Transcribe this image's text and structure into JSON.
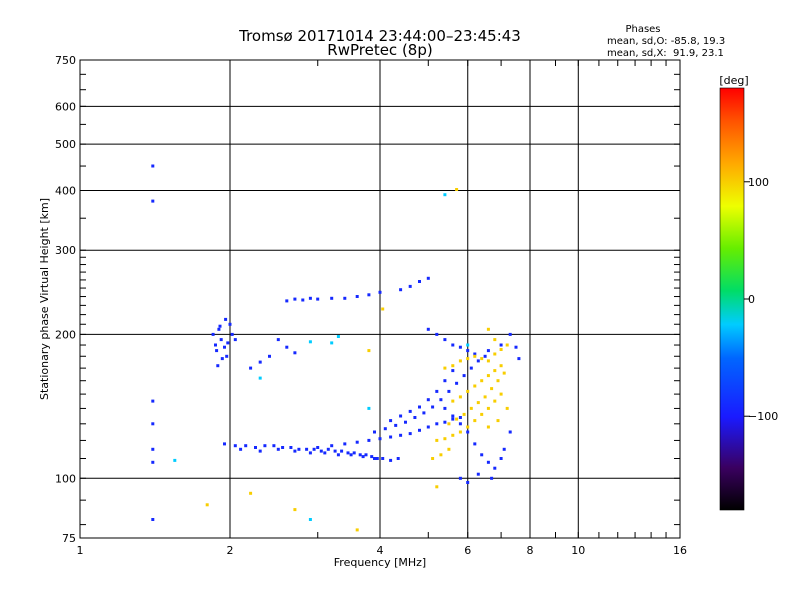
{
  "chart_data": {
    "type": "scatter",
    "title": "Tromsø 20171014 23:44:00–23:45:43",
    "subtitle": "RwPretec (8p)",
    "xlabel": "Frequency [MHz]",
    "ylabel": "Stationary phase Virtual Height [km]",
    "x_scale": "log",
    "y_scale": "log",
    "xlim": [
      1,
      16
    ],
    "ylim": [
      75,
      750
    ],
    "x_ticks": [
      1,
      2,
      4,
      6,
      8,
      10,
      16
    ],
    "x_tick_labels": [
      "1",
      "2",
      "4",
      "6",
      "8",
      "10",
      "16"
    ],
    "y_ticks": [
      75,
      100,
      200,
      300,
      400,
      500,
      600,
      750
    ],
    "y_tick_labels": [
      "75",
      "100",
      "200",
      "300",
      "400",
      "500",
      "600",
      "750"
    ],
    "grid": true,
    "stats_box": {
      "heading": "Phases",
      "line_o": "mean, sd,O: -85.8, 19.3",
      "line_x": "mean, sd,X:  91.9, 23.1"
    },
    "colorbar": {
      "label": "[deg]",
      "range": [
        -180,
        180
      ],
      "ticks": [
        100,
        0,
        -100
      ],
      "tick_labels": [
        "100",
        "0",
        "−100"
      ]
    },
    "series": [
      {
        "mode": "O",
        "phase": -100,
        "points": [
          [
            1.4,
            450
          ],
          [
            1.4,
            380
          ],
          [
            1.4,
            145
          ],
          [
            1.4,
            130
          ],
          [
            1.4,
            115
          ],
          [
            1.4,
            108
          ],
          [
            1.4,
            82
          ],
          [
            1.85,
            200
          ],
          [
            1.87,
            190
          ],
          [
            1.88,
            185
          ],
          [
            1.9,
            205
          ],
          [
            1.92,
            195
          ],
          [
            1.95,
            188
          ],
          [
            1.97,
            180
          ],
          [
            1.98,
            192
          ],
          [
            2.0,
            210
          ],
          [
            2.02,
            200
          ],
          [
            1.93,
            178
          ],
          [
            1.89,
            172
          ],
          [
            2.05,
            195
          ],
          [
            1.96,
            215
          ],
          [
            1.91,
            208
          ],
          [
            1.95,
            118
          ],
          [
            2.05,
            117
          ],
          [
            2.15,
            117
          ],
          [
            2.25,
            116
          ],
          [
            2.35,
            117
          ],
          [
            2.45,
            117
          ],
          [
            2.55,
            116
          ],
          [
            2.65,
            116
          ],
          [
            2.75,
            115
          ],
          [
            2.85,
            115
          ],
          [
            2.95,
            115
          ],
          [
            3.05,
            114
          ],
          [
            3.15,
            115
          ],
          [
            3.25,
            114
          ],
          [
            3.35,
            114
          ],
          [
            3.45,
            113
          ],
          [
            3.55,
            113
          ],
          [
            3.65,
            112
          ],
          [
            3.75,
            112
          ],
          [
            3.85,
            111
          ],
          [
            3.95,
            110
          ],
          [
            4.05,
            110
          ],
          [
            4.2,
            109
          ],
          [
            4.35,
            110
          ],
          [
            2.1,
            115
          ],
          [
            2.3,
            114
          ],
          [
            2.5,
            115
          ],
          [
            2.7,
            114
          ],
          [
            2.9,
            113
          ],
          [
            3.1,
            113
          ],
          [
            3.3,
            112
          ],
          [
            3.5,
            112
          ],
          [
            3.7,
            111
          ],
          [
            3.9,
            110
          ],
          [
            3.0,
            116
          ],
          [
            3.2,
            117
          ],
          [
            3.4,
            118
          ],
          [
            3.6,
            119
          ],
          [
            3.8,
            120
          ],
          [
            4.0,
            121
          ],
          [
            4.2,
            122
          ],
          [
            4.4,
            123
          ],
          [
            4.6,
            124
          ],
          [
            4.8,
            126
          ],
          [
            5.0,
            128
          ],
          [
            5.2,
            130
          ],
          [
            5.4,
            131
          ],
          [
            5.6,
            133
          ],
          [
            5.8,
            134
          ],
          [
            3.9,
            125
          ],
          [
            4.1,
            127
          ],
          [
            4.3,
            129
          ],
          [
            4.5,
            131
          ],
          [
            4.7,
            134
          ],
          [
            4.9,
            137
          ],
          [
            5.1,
            141
          ],
          [
            5.3,
            146
          ],
          [
            5.5,
            152
          ],
          [
            5.7,
            158
          ],
          [
            5.9,
            164
          ],
          [
            6.1,
            170
          ],
          [
            6.3,
            176
          ],
          [
            6.5,
            180
          ],
          [
            4.2,
            132
          ],
          [
            4.4,
            135
          ],
          [
            4.6,
            138
          ],
          [
            4.8,
            141
          ],
          [
            5.0,
            146
          ],
          [
            5.2,
            152
          ],
          [
            5.4,
            160
          ],
          [
            5.6,
            168
          ],
          [
            2.6,
            235
          ],
          [
            2.7,
            237
          ],
          [
            2.8,
            236
          ],
          [
            2.9,
            238
          ],
          [
            3.0,
            237
          ],
          [
            3.2,
            238
          ],
          [
            3.4,
            238
          ],
          [
            3.6,
            240
          ],
          [
            3.8,
            242
          ],
          [
            4.0,
            245
          ],
          [
            4.4,
            248
          ],
          [
            4.6,
            252
          ],
          [
            4.8,
            258
          ],
          [
            5.0,
            262
          ],
          [
            2.5,
            195
          ],
          [
            2.6,
            188
          ],
          [
            2.7,
            183
          ],
          [
            2.4,
            180
          ],
          [
            2.3,
            175
          ],
          [
            2.2,
            170
          ],
          [
            5.0,
            205
          ],
          [
            5.2,
            200
          ],
          [
            5.4,
            195
          ],
          [
            5.6,
            190
          ],
          [
            5.8,
            188
          ],
          [
            6.0,
            185
          ],
          [
            6.2,
            182
          ],
          [
            6.6,
            185
          ],
          [
            7.0,
            190
          ],
          [
            7.3,
            200
          ],
          [
            7.5,
            188
          ],
          [
            7.6,
            178
          ],
          [
            5.4,
            140
          ],
          [
            5.6,
            135
          ],
          [
            5.8,
            130
          ],
          [
            6.0,
            125
          ],
          [
            6.2,
            118
          ],
          [
            6.4,
            112
          ],
          [
            6.6,
            108
          ],
          [
            6.8,
            105
          ],
          [
            7.0,
            110
          ],
          [
            5.8,
            100
          ],
          [
            6.0,
            98
          ],
          [
            6.3,
            102
          ],
          [
            6.7,
            100
          ],
          [
            7.1,
            115
          ],
          [
            7.3,
            125
          ]
        ]
      },
      {
        "mode": "X",
        "phase": 100,
        "points": [
          [
            5.2,
            120
          ],
          [
            5.4,
            121
          ],
          [
            5.6,
            123
          ],
          [
            5.8,
            125
          ],
          [
            6.0,
            128
          ],
          [
            6.2,
            132
          ],
          [
            6.4,
            136
          ],
          [
            6.6,
            140
          ],
          [
            6.8,
            145
          ],
          [
            7.0,
            150
          ],
          [
            5.4,
            170
          ],
          [
            5.6,
            172
          ],
          [
            5.8,
            176
          ],
          [
            6.0,
            178
          ],
          [
            6.2,
            180
          ],
          [
            6.4,
            178
          ],
          [
            6.6,
            176
          ],
          [
            6.8,
            182
          ],
          [
            7.0,
            186
          ],
          [
            7.2,
            190
          ],
          [
            5.6,
            145
          ],
          [
            5.8,
            148
          ],
          [
            6.0,
            152
          ],
          [
            6.2,
            156
          ],
          [
            6.4,
            160
          ],
          [
            6.6,
            164
          ],
          [
            6.8,
            168
          ],
          [
            7.0,
            172
          ],
          [
            5.5,
            130
          ],
          [
            5.7,
            133
          ],
          [
            5.9,
            136
          ],
          [
            6.1,
            140
          ],
          [
            6.3,
            144
          ],
          [
            6.5,
            148
          ],
          [
            6.7,
            154
          ],
          [
            6.9,
            160
          ],
          [
            7.1,
            166
          ],
          [
            5.1,
            110
          ],
          [
            5.3,
            112
          ],
          [
            5.5,
            115
          ],
          [
            6.6,
            128
          ],
          [
            6.9,
            132
          ],
          [
            7.2,
            140
          ],
          [
            1.8,
            88
          ],
          [
            2.2,
            93
          ],
          [
            2.7,
            86
          ],
          [
            3.6,
            78
          ],
          [
            3.8,
            185
          ],
          [
            4.05,
            226
          ],
          [
            5.2,
            96
          ],
          [
            5.7,
            402
          ],
          [
            6.6,
            205
          ],
          [
            6.8,
            195
          ]
        ]
      },
      {
        "mode": "mixed",
        "phase": -20,
        "points": [
          [
            1.55,
            109
          ],
          [
            2.9,
            82
          ],
          [
            3.2,
            192
          ],
          [
            3.3,
            198
          ],
          [
            2.9,
            193
          ],
          [
            2.3,
            162
          ],
          [
            3.8,
            140
          ],
          [
            5.4,
            392
          ],
          [
            6.0,
            190
          ]
        ]
      }
    ]
  }
}
